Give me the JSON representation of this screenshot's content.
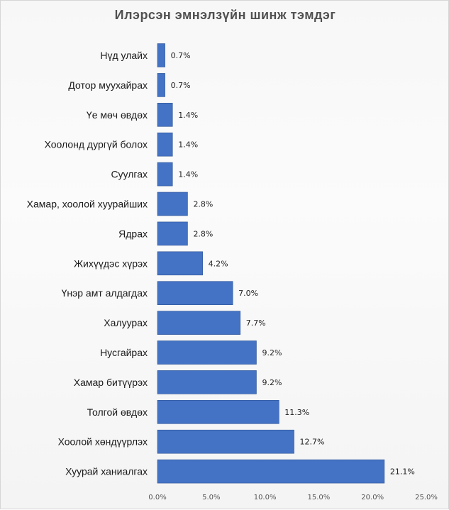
{
  "colors": {
    "bar": "#4472c4",
    "bar_edge": "#2f5597"
  },
  "chart_data": {
    "type": "bar",
    "orientation": "horizontal",
    "title": "Илэрсэн эмнэлзүйн шинж тэмдэг",
    "xlabel": "",
    "ylabel": "",
    "categories": [
      "Нүд улайх",
      "Дотор муухайрах",
      "Үе мөч өвдөх",
      "Хоолонд дургүй болох",
      "Суулгах",
      "Хамар, хоолой хуурайших",
      "Ядрах",
      "Жихүүдэс хүрэх",
      "Үнэр амт алдагдах",
      "Халуурах",
      "Нусгайрах",
      "Хамар битүүрэх",
      "Толгой өвдөх",
      "Хоолой хөндүүрлэх",
      "Хуурай ханиалгах"
    ],
    "values": [
      0.7,
      0.7,
      1.4,
      1.4,
      1.4,
      2.8,
      2.8,
      4.2,
      7.0,
      7.7,
      9.2,
      9.2,
      11.3,
      12.7,
      21.1
    ],
    "value_labels": [
      "0.7%",
      "0.7%",
      "1.4%",
      "1.4%",
      "1.4%",
      "2.8%",
      "2.8%",
      "4.2%",
      "7.0%",
      "7.7%",
      "9.2%",
      "9.2%",
      "11.3%",
      "12.7%",
      "21.1%"
    ],
    "xlim": [
      0,
      25
    ],
    "x_ticks": [
      0,
      5,
      10,
      15,
      20,
      25
    ],
    "x_tick_labels": [
      "0.0%",
      "5.0%",
      "10.0%",
      "15.0%",
      "20.0%",
      "25.0%"
    ],
    "grid": false,
    "legend": "none"
  }
}
